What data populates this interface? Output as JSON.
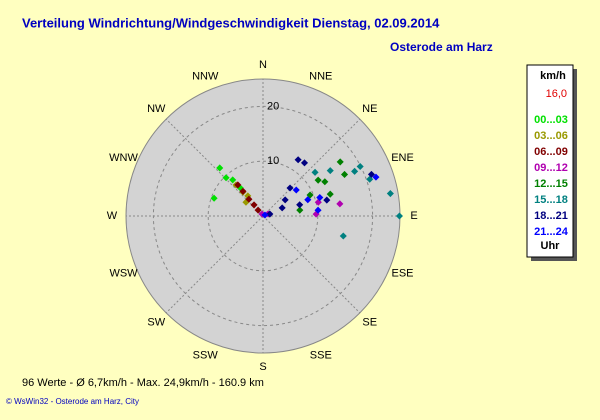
{
  "chart_data": {
    "type": "polar_scatter",
    "title": "Verteilung Windrichtung/Windgeschwindigkeit  Dienstag, 02.09.2014",
    "subtitle": "Osterode am Harz",
    "directions": [
      "N",
      "NNE",
      "NE",
      "ENE",
      "E",
      "ESE",
      "SE",
      "SSE",
      "S",
      "SSW",
      "SW",
      "WSW",
      "W",
      "WNW",
      "NW",
      "NNW"
    ],
    "rlim": [
      0,
      25
    ],
    "rticks": [
      10,
      20
    ],
    "legend_title": "km/h",
    "legend_value": "16,0",
    "legend_footer": "Uhr",
    "series": [
      {
        "name": "00...03",
        "color": "#00e000",
        "theta": [
          318,
          316,
          290,
          320,
          321
        ],
        "r": [
          11.8,
          9.7,
          9.5,
          8.6,
          6.6
        ]
      },
      {
        "name": "03...06",
        "color": "#999900",
        "theta": [
          320,
          323,
          319,
          309
        ],
        "r": [
          5.7,
          4.6,
          7.5,
          4.0
        ]
      },
      {
        "name": "06...09",
        "color": "#800000",
        "theta": [
          321,
          321,
          320,
          321,
          320
        ],
        "r": [
          7.3,
          5.8,
          4.0,
          2.6,
          1.4
        ]
      },
      {
        "name": "09...12",
        "color": "#b000b0",
        "theta": [
          333,
          68,
          76,
          81,
          88
        ],
        "r": [
          0.4,
          1.0,
          10.4,
          14.2,
          9.7
        ]
      },
      {
        "name": "12...15",
        "color": "#008000",
        "theta": [
          55,
          61,
          57,
          72,
          66,
          81,
          63
        ],
        "r": [
          17.2,
          12.9,
          12.0,
          12.9,
          9.4,
          6.8,
          16.7
        ]
      },
      {
        "name": "15...18",
        "color": "#008080",
        "theta": [
          80,
          90,
          63,
          64,
          104,
          71,
          56,
          50
        ],
        "r": [
          23.6,
          24.9,
          19.9,
          18.6,
          15.1,
          20.6,
          14.8,
          12.4
        ]
      },
      {
        "name": "18...21",
        "color": "#000080",
        "theta": [
          32,
          38,
          44,
          67,
          73,
          76,
          69,
          54,
          74
        ],
        "r": [
          12.1,
          12.3,
          7.1,
          3.8,
          7.0,
          12.0,
          21.2,
          5.0,
          1.3
        ]
      },
      {
        "name": "21...24",
        "color": "#0000ff",
        "theta": [
          70,
          72,
          52,
          84,
          71,
          63
        ],
        "r": [
          8.7,
          10.9,
          7.7,
          10.1,
          21.8,
          0.4
        ]
      }
    ],
    "footer": "96 Werte   -   Ø 6,7km/h   -   Max. 24,9km/h   -   160.9 km",
    "credit": "© WsWin32  -  Osterode am Harz, City"
  }
}
